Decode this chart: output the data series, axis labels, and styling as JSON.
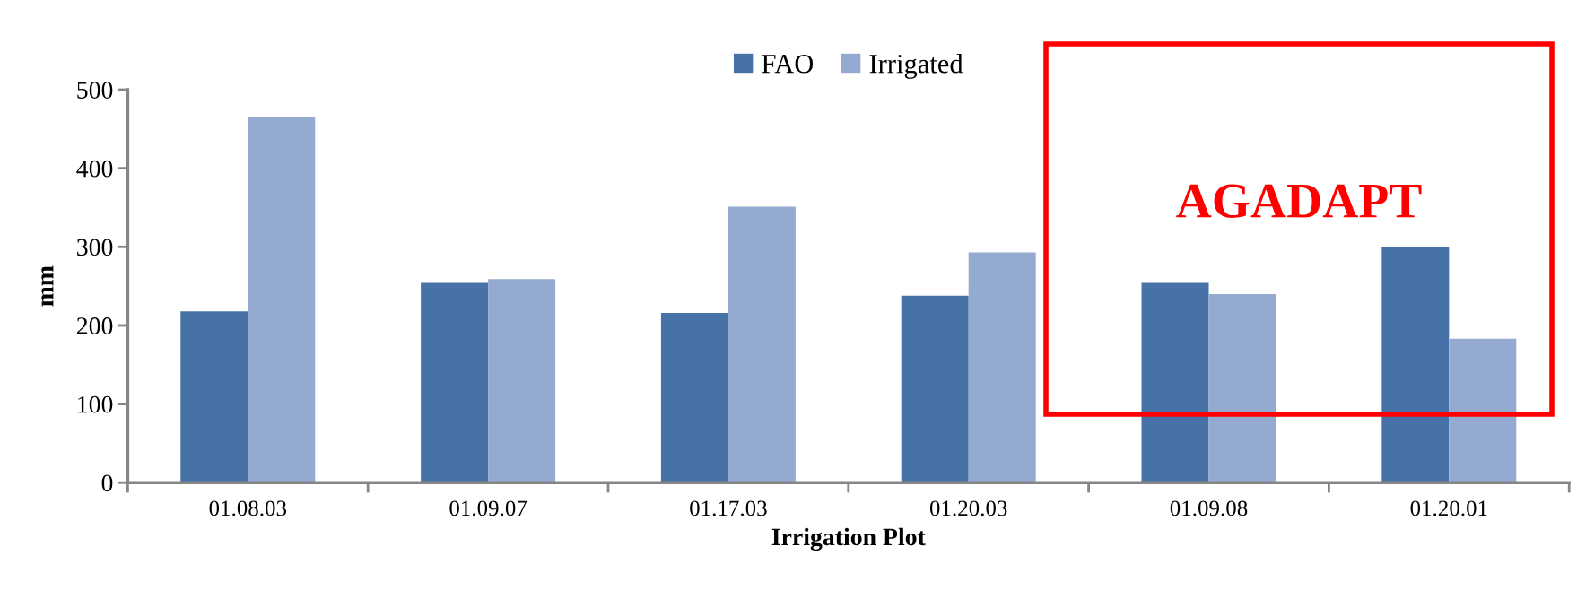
{
  "chart_data": {
    "type": "bar",
    "xlabel": "Irrigation Plot",
    "ylabel": "mm",
    "categories": [
      "01.08.03",
      "01.09.07",
      "01.17.03",
      "01.20.03",
      "01.09.08",
      "01.20.01"
    ],
    "series": [
      {
        "name": "FAO",
        "color": "#4672a7",
        "values": [
          218,
          254,
          216,
          238,
          254,
          300
        ]
      },
      {
        "name": "Irrigated",
        "color": "#95aad0",
        "values": [
          465,
          259,
          351,
          293,
          240,
          183
        ]
      }
    ],
    "ylim": [
      0,
      500
    ],
    "yticks": [
      0,
      100,
      200,
      300,
      400,
      500
    ],
    "grid": false,
    "legend": "top",
    "annotations": [
      "AGADAPT"
    ]
  }
}
